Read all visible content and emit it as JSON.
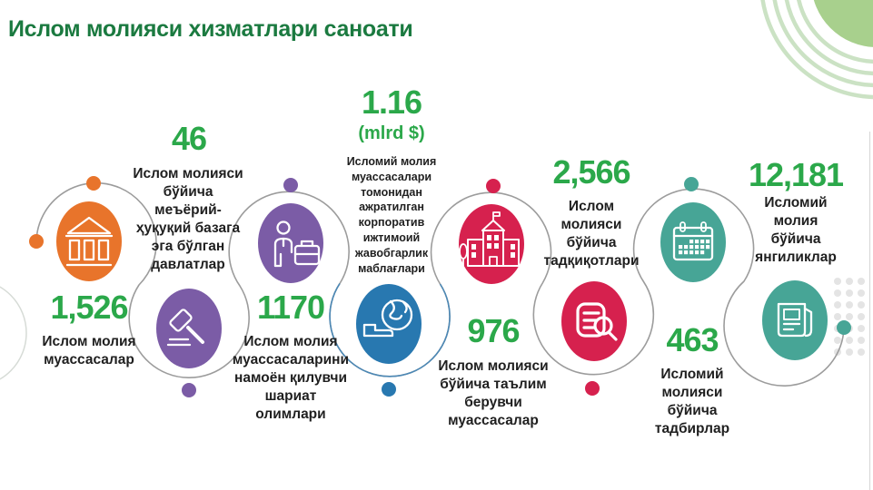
{
  "theme": {
    "title_color": "#1b7a40",
    "value_color": "#2ba84a",
    "label_color": "#1f1f1f",
    "line_color": "#9c9c9c",
    "line_blue": "#4c88b5",
    "decor_green_fill": "#a8d08d",
    "decor_ring": "#cbe2c4",
    "decor_dot": "#e4e4e4",
    "decor_arc": "#d6dbd6",
    "edge_line": "#d9d9d9"
  },
  "title": "Ислом молияси хизматлари саноати",
  "items": [
    {
      "id": "institutions",
      "value": "1,526",
      "label": "Ислом молия\nмуассасалар",
      "icon": "bank-icon",
      "color": "#e8742b"
    },
    {
      "id": "legal-states",
      "value": "46",
      "label": "Ислом молияси\nбўйича\nмеъёрий-\nҳуқуқий базага\nэга бўлган\nдавлатлар",
      "icon": "gavel-icon",
      "color": "#7b5ca6"
    },
    {
      "id": "sharia-scholars",
      "value": "1170",
      "label": "Ислом молия\nмуассасаларини\nнамоён қилувчи\nшариат\nолимлари",
      "icon": "person-briefcase-icon",
      "color": "#7b5ca6"
    },
    {
      "id": "csr-funds",
      "value": "1.16",
      "subvalue": "(mlrd $)",
      "label": "Исломий молия\nмуассасалари\nтомонидан\nажратилган\nкорпоратив\nижтимоий\nжавобгарлик\nмаблағлари",
      "icon": "globe-hand-icon",
      "color": "#2878b0"
    },
    {
      "id": "education",
      "value": "976",
      "label": "Ислом молияси\nбўйича таълим\nберувчи\nмуассасалар",
      "icon": "school-icon",
      "color": "#d6214e"
    },
    {
      "id": "research",
      "value": "2,566",
      "label": "Ислом\nмолияси\nбўйича\nтадқиқотлари",
      "icon": "document-magnifier-icon",
      "color": "#d6214e"
    },
    {
      "id": "events",
      "value": "463",
      "label": "Исломий\nмолияси\nбўйича\nтадбирлар",
      "icon": "calendar-icon",
      "color": "#47a596"
    },
    {
      "id": "news",
      "value": "12,181",
      "label": "Исломий\nмолия\nбўйича\nянгиликлар",
      "icon": "newspaper-icon",
      "color": "#47a596"
    }
  ]
}
